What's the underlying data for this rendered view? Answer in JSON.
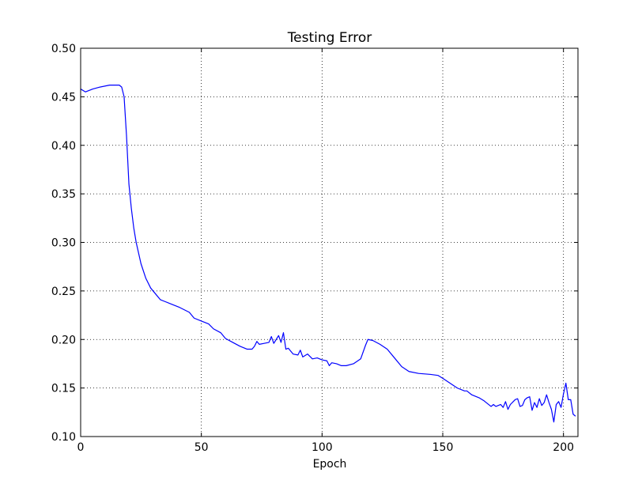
{
  "chart_data": {
    "type": "line",
    "title": "Testing Error",
    "xlabel": "Epoch",
    "ylabel": "",
    "xlim": [
      0,
      206
    ],
    "ylim": [
      0.1,
      0.5
    ],
    "xticks": [
      0,
      50,
      100,
      150,
      200
    ],
    "xtick_labels": [
      "0",
      "50",
      "100",
      "150",
      "200"
    ],
    "yticks": [
      0.1,
      0.15,
      0.2,
      0.25,
      0.3,
      0.35,
      0.4,
      0.45,
      0.5
    ],
    "ytick_labels": [
      "0.10",
      "0.15",
      "0.20",
      "0.25",
      "0.30",
      "0.35",
      "0.40",
      "0.45",
      "0.50"
    ],
    "grid": true,
    "line_color": "#0000ff",
    "series": [
      {
        "x": [
          0,
          2,
          5,
          8,
          12,
          16,
          17,
          18,
          19,
          20,
          21,
          22,
          23,
          25,
          27,
          29,
          31,
          33,
          35,
          38,
          41,
          45,
          47,
          50,
          53,
          55,
          58,
          60,
          63,
          66,
          69,
          71,
          72,
          73,
          74,
          76,
          78,
          79,
          80,
          81,
          82,
          83,
          84,
          85,
          86,
          88,
          90,
          91,
          92,
          94,
          96,
          98,
          100,
          102,
          103,
          104,
          106,
          108,
          110,
          113,
          116,
          118,
          119,
          121,
          124,
          127,
          130,
          133,
          136,
          140,
          145,
          148,
          150,
          153,
          156,
          159,
          160,
          162,
          165,
          167,
          168,
          170,
          171,
          172,
          174,
          175,
          176,
          177,
          178,
          180,
          181,
          182,
          183,
          184,
          185,
          186,
          187,
          188,
          189,
          190,
          191,
          192,
          193,
          194,
          195,
          196,
          197,
          198,
          199,
          200,
          201,
          202,
          203,
          204,
          205
        ],
        "y": [
          0.458,
          0.455,
          0.458,
          0.46,
          0.462,
          0.462,
          0.46,
          0.45,
          0.41,
          0.36,
          0.335,
          0.315,
          0.3,
          0.278,
          0.263,
          0.253,
          0.247,
          0.241,
          0.239,
          0.236,
          0.233,
          0.228,
          0.222,
          0.219,
          0.216,
          0.211,
          0.207,
          0.201,
          0.197,
          0.193,
          0.19,
          0.19,
          0.193,
          0.198,
          0.195,
          0.196,
          0.197,
          0.203,
          0.196,
          0.2,
          0.204,
          0.197,
          0.207,
          0.19,
          0.191,
          0.185,
          0.184,
          0.189,
          0.182,
          0.185,
          0.18,
          0.181,
          0.179,
          0.178,
          0.173,
          0.176,
          0.175,
          0.173,
          0.173,
          0.175,
          0.18,
          0.194,
          0.2,
          0.199,
          0.195,
          0.19,
          0.181,
          0.172,
          0.167,
          0.165,
          0.164,
          0.163,
          0.16,
          0.155,
          0.15,
          0.147,
          0.147,
          0.143,
          0.14,
          0.137,
          0.135,
          0.131,
          0.133,
          0.131,
          0.133,
          0.13,
          0.136,
          0.128,
          0.133,
          0.138,
          0.139,
          0.131,
          0.132,
          0.138,
          0.14,
          0.141,
          0.127,
          0.135,
          0.13,
          0.139,
          0.132,
          0.135,
          0.143,
          0.135,
          0.128,
          0.115,
          0.133,
          0.136,
          0.13,
          0.144,
          0.155,
          0.138,
          0.138,
          0.123,
          0.121
        ]
      }
    ]
  }
}
